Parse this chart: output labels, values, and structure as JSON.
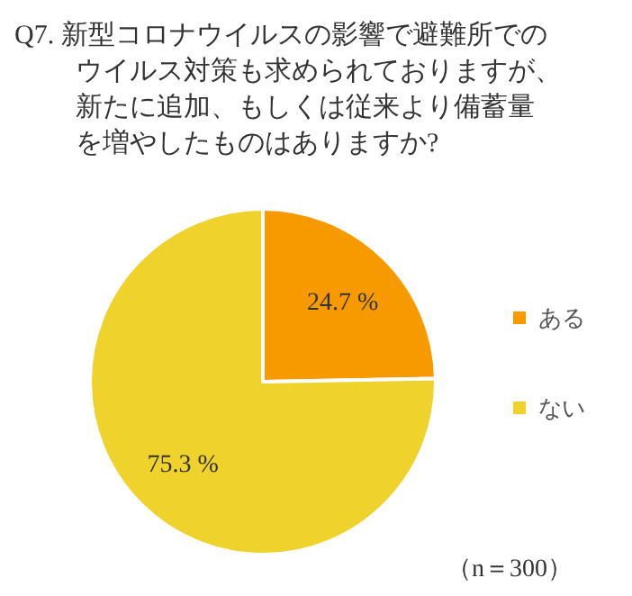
{
  "chart_data": {
    "type": "pie",
    "title": "Q7. 新型コロナウイルスの影響で避難所でのウイルス対策も求められておりますが、新たに追加、もしくは従来より備蓄量を増やしたものはありますか?",
    "categories": [
      "ある",
      "ない"
    ],
    "values": [
      24.7,
      75.3
    ],
    "value_labels": [
      "24.7 %",
      "75.3 %"
    ],
    "colors": [
      "#f79a00",
      "#efd22b"
    ],
    "legend": "right",
    "annotations": [
      "（n＝300）"
    ]
  }
}
